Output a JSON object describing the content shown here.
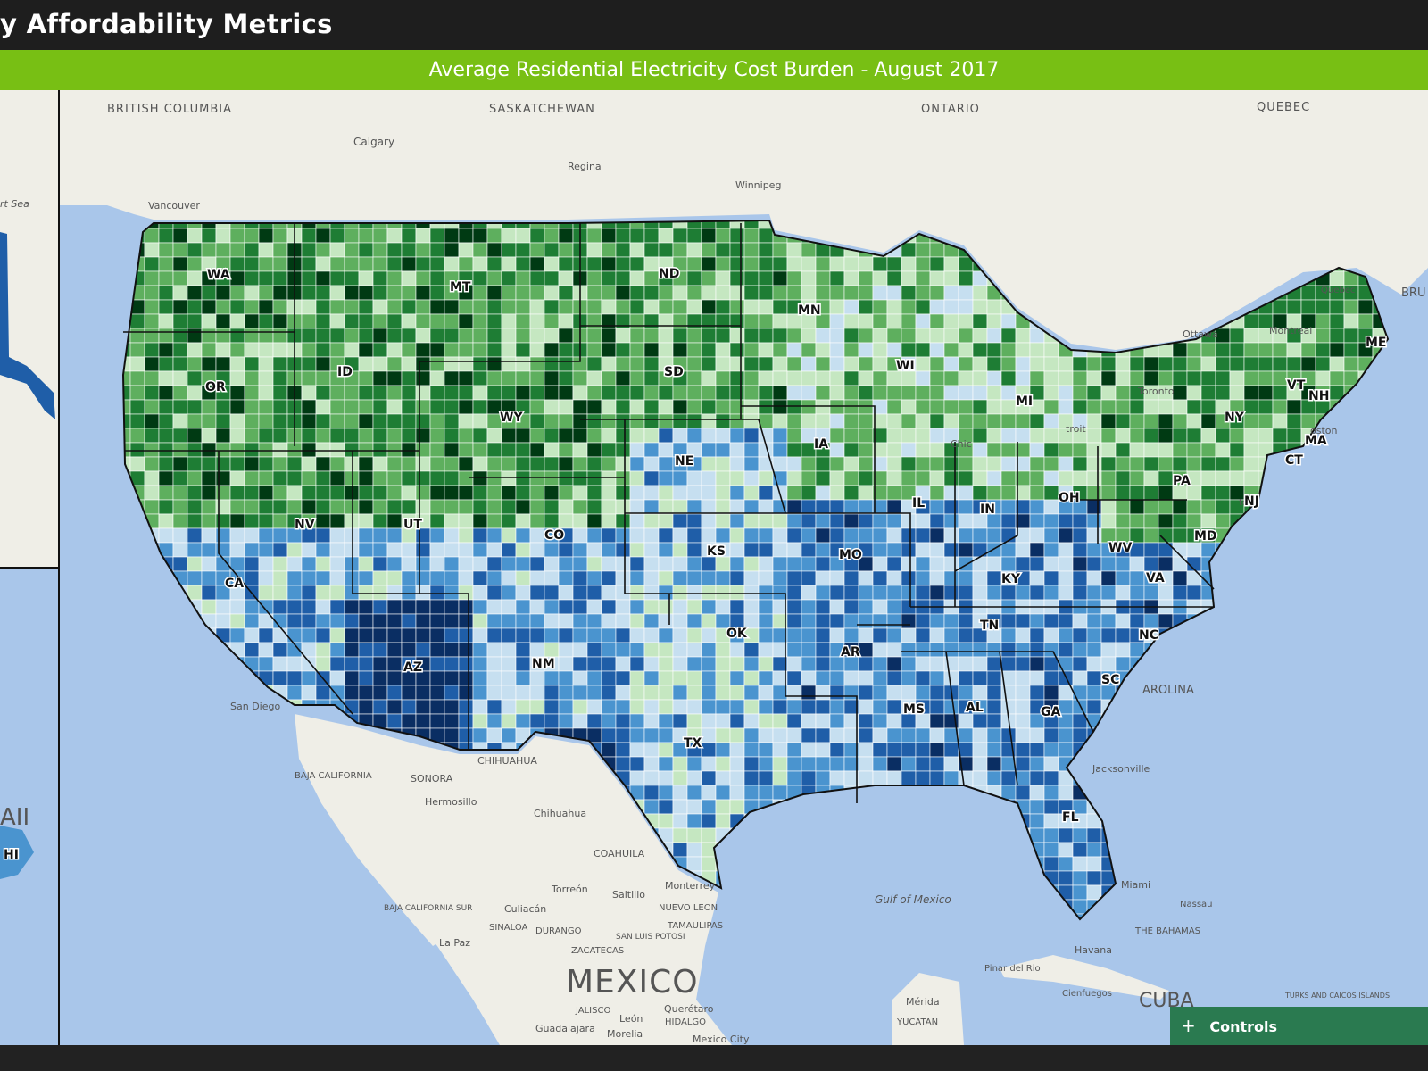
{
  "header": {
    "title": "y Affordability Metrics"
  },
  "subtitle": "Average Residential Electricity Cost Burden - August 2017",
  "controls": {
    "label": "Controls",
    "icon": "plus-icon"
  },
  "colors": {
    "header_bg": "#1e1e1e",
    "subtitle_bg": "#78bf14",
    "water": "#a9c6ea",
    "land": "#efeee7",
    "controls_bg": "#2a7a50",
    "scale": [
      "#003a13",
      "#1e7d34",
      "#5eaf5e",
      "#c5e7c1",
      "#c6dff0",
      "#4a94cf",
      "#1f5ea8",
      "#0a2e63"
    ]
  },
  "map_labels": {
    "regions": [
      "BRITISH COLUMBIA",
      "SASKATCHEWAN",
      "ONTARIO",
      "QUEBEC",
      "BAJA CALIFORNIA",
      "SONORA",
      "CHIHUAHUA",
      "COAHUILA",
      "NUEVO LEON",
      "TAMAULIPAS",
      "SINALOA",
      "DURANGO",
      "ZACATECAS",
      "SAN LUIS POTOSI",
      "JALISCO",
      "HIDALGO",
      "YUCATAN",
      "BAJA CALIFORNIA SUR",
      "THE BAHAMAS",
      "TURKS AND CAICOS ISLANDS",
      "AROLINA",
      "BRU"
    ],
    "cities": [
      "Calgary",
      "Regina",
      "Winnipeg",
      "Vancouver",
      "Ottawa",
      "Montreal",
      "Toronto",
      "Quebec",
      "Hermosillo",
      "Chihuahua",
      "Torreón",
      "Saltillo",
      "Monterrey",
      "Culiacán",
      "La Paz",
      "León",
      "Querétaro",
      "Guadalajara",
      "Morelia",
      "Mexico City",
      "Mérida",
      "Havana",
      "Pinar del Rio",
      "Cienfuegos",
      "Nassau",
      "Miami",
      "Jacksonville",
      "San Diego",
      "Chic",
      "troit",
      "oston",
      "ton"
    ],
    "countries": [
      "MEXICO",
      "CUBA"
    ],
    "water": [
      "Gulf of Mexico",
      "rt Sea"
    ],
    "inset": [
      "AII",
      "HI"
    ]
  },
  "states": [
    "WA",
    "MT",
    "ND",
    "MN",
    "OR",
    "ID",
    "SD",
    "WY",
    "WI",
    "MI",
    "NY",
    "VT",
    "NH",
    "ME",
    "MA",
    "CT",
    "IA",
    "NE",
    "PA",
    "NJ",
    "NV",
    "UT",
    "CO",
    "IL",
    "IN",
    "OH",
    "MD",
    "WV",
    "KS",
    "MO",
    "VA",
    "KY",
    "CA",
    "TN",
    "NC",
    "OK",
    "AR",
    "SC",
    "AZ",
    "NM",
    "MS",
    "AL",
    "GA",
    "TX",
    "FL"
  ]
}
